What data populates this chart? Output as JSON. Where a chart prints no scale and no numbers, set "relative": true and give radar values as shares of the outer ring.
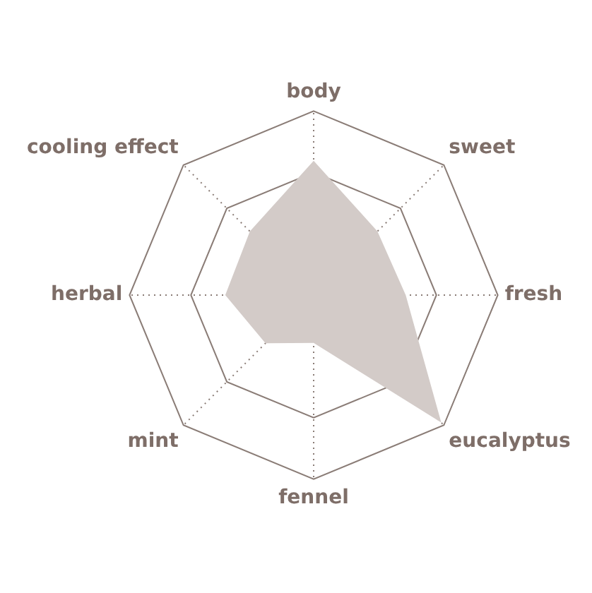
{
  "chart_data": {
    "type": "radar",
    "categories": [
      "body",
      "sweet",
      "fresh",
      "eucalyptus",
      "fennel",
      "mint",
      "herbal",
      "cooling effect"
    ],
    "relative": true,
    "grid": true,
    "marker": "none",
    "legend": false,
    "series": [
      {
        "color": "#d3cbc8",
        "values": [
          0.73,
          0.49,
          0.5,
          0.98,
          0.26,
          0.37,
          0.48,
          0.49
        ]
      }
    ]
  }
}
